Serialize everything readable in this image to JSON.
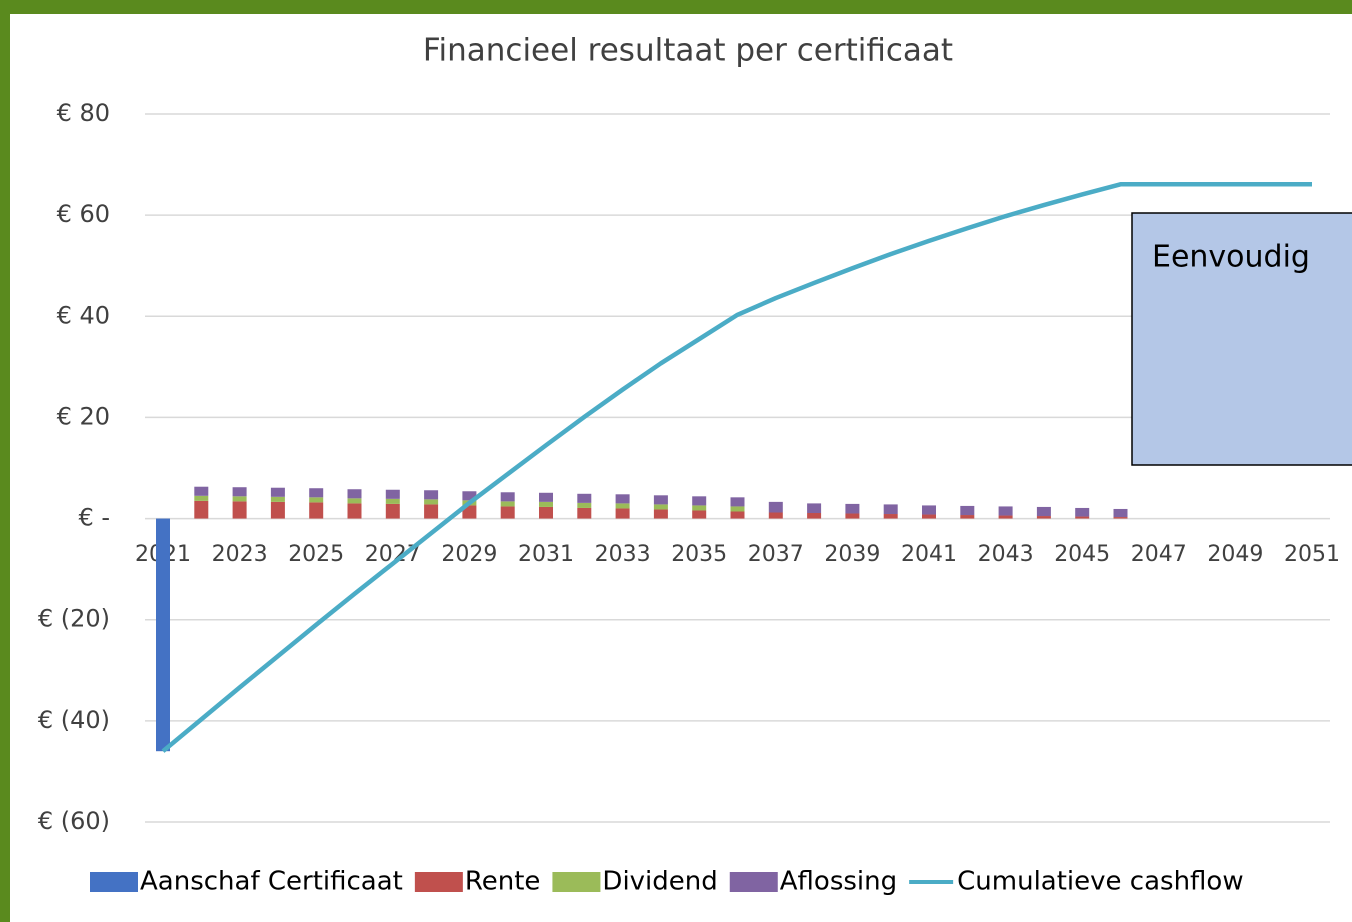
{
  "chart_data": {
    "type": "bar",
    "stacked": true,
    "title": "Financieel resultaat per certificaat",
    "text_box": "Eenvoudig",
    "categories": [
      "2021",
      null,
      "2023",
      null,
      "2025",
      null,
      "2027",
      null,
      "2029",
      null,
      "2031",
      null,
      "2033",
      null,
      "2035",
      null,
      "2037",
      null,
      "2039",
      null,
      "2041",
      null,
      "2043",
      null,
      "2045",
      null,
      "2047",
      null,
      "2049",
      null,
      "2051"
    ],
    "ylim": [
      -60,
      80
    ],
    "yticks": [
      {
        "value": -60,
        "label": "€ (60)"
      },
      {
        "value": -40,
        "label": "€ (40)"
      },
      {
        "value": -20,
        "label": "€ (20)"
      },
      {
        "value": 0,
        "label": "€ -"
      },
      {
        "value": 20,
        "label": "€ 20"
      },
      {
        "value": 40,
        "label": "€ 40"
      },
      {
        "value": 60,
        "label": "€ 60"
      },
      {
        "value": 80,
        "label": "€ 80"
      }
    ],
    "grid": true,
    "legend": "bottom",
    "series": [
      {
        "name": "Aanschaf Certificaat",
        "type": "bar",
        "color": "#4472c4",
        "values": [
          -46,
          null,
          null,
          null,
          null,
          null,
          null,
          null,
          null,
          null,
          null,
          null,
          null,
          null,
          null,
          null,
          null,
          null,
          null,
          null,
          null,
          null,
          null,
          null,
          null,
          null,
          null,
          null,
          null,
          null,
          null
        ]
      },
      {
        "name": "Rente",
        "type": "bar",
        "color": "#c0504d",
        "values": [
          null,
          3.5,
          3.4,
          3.3,
          3.2,
          3.0,
          2.9,
          2.8,
          2.6,
          2.4,
          2.3,
          2.1,
          2.0,
          1.8,
          1.6,
          1.4,
          1.2,
          1.1,
          1.0,
          0.9,
          0.8,
          0.7,
          0.6,
          0.5,
          0.4,
          0.3,
          null,
          null,
          null,
          null,
          null
        ]
      },
      {
        "name": "Dividend",
        "type": "bar",
        "color": "#9bbb59",
        "values": [
          null,
          1.0,
          1.0,
          1.0,
          1.0,
          1.0,
          1.0,
          1.0,
          1.0,
          1.0,
          1.0,
          1.0,
          1.0,
          1.0,
          1.0,
          1.0,
          null,
          null,
          null,
          null,
          null,
          null,
          null,
          null,
          null,
          null,
          null,
          null,
          null,
          null,
          null
        ]
      },
      {
        "name": "Aflossing",
        "type": "bar",
        "color": "#8064a2",
        "values": [
          null,
          1.8,
          1.8,
          1.8,
          1.8,
          1.8,
          1.8,
          1.8,
          1.8,
          1.8,
          1.8,
          1.8,
          1.8,
          1.8,
          1.8,
          1.8,
          2.1,
          1.9,
          1.9,
          1.9,
          1.8,
          1.8,
          1.8,
          1.8,
          1.7,
          1.6,
          null,
          null,
          null,
          null,
          null
        ]
      },
      {
        "name": "Cumulatieve cashflow",
        "type": "line",
        "color": "#4bacc6",
        "values": [
          -46,
          -39.7,
          -33.4,
          -27.2,
          -21,
          -14.9,
          -8.9,
          -2.9,
          3.1,
          8.8,
          14.5,
          20.1,
          25.5,
          30.7,
          35.5,
          40.3,
          43.6,
          46.6,
          49.5,
          52.3,
          54.9,
          57.4,
          59.8,
          62.0,
          64.1,
          66.1,
          66.1,
          66.1,
          66.1,
          66.1,
          66.1
        ]
      }
    ]
  }
}
